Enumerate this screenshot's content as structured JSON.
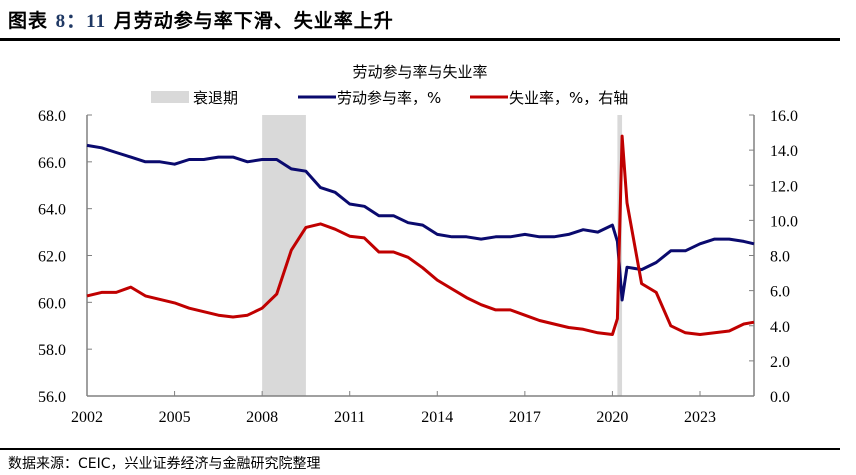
{
  "header": {
    "title_prefix": "图表",
    "title_num": "8：11",
    "title_text": "月劳动参与率下滑、失业率上升"
  },
  "footer": {
    "source": "数据来源：CEIC，兴业证券经济与金融研究院整理"
  },
  "colors": {
    "lfpr": "#0a0a6e",
    "unemployment": "#c00000",
    "recession": "#d9d9d9",
    "axis": "#808080"
  },
  "chart_data": {
    "type": "line",
    "title": "劳动参与率与失业率",
    "legend": [
      "衰退期",
      "劳动参与率，%",
      "失业率，%，右轴"
    ],
    "legend_position": "top",
    "xlabel": "",
    "ylabel": "",
    "x_ticks": [
      "2002",
      "2005",
      "2008",
      "2011",
      "2014",
      "2017",
      "2020",
      "2023"
    ],
    "y_left_ticks": [
      "56.0",
      "58.0",
      "60.0",
      "62.0",
      "64.0",
      "66.0",
      "68.0"
    ],
    "y_right_ticks": [
      "0.0",
      "2.0",
      "4.0",
      "6.0",
      "8.0",
      "10.0",
      "12.0",
      "14.0",
      "16.0"
    ],
    "ylim_left": [
      56,
      68
    ],
    "ylim_right": [
      0,
      16
    ],
    "xlim": [
      2002.0,
      2024.85
    ],
    "grid": false,
    "recessions": [
      [
        2008.0,
        2009.5
      ],
      [
        2020.17,
        2020.33
      ]
    ],
    "x": [
      2002.0,
      2002.5,
      2003.0,
      2003.5,
      2004.0,
      2004.5,
      2005.0,
      2005.5,
      2006.0,
      2006.5,
      2007.0,
      2007.5,
      2008.0,
      2008.5,
      2009.0,
      2009.5,
      2010.0,
      2010.5,
      2011.0,
      2011.5,
      2012.0,
      2012.5,
      2013.0,
      2013.5,
      2014.0,
      2014.5,
      2015.0,
      2015.5,
      2016.0,
      2016.5,
      2017.0,
      2017.5,
      2018.0,
      2018.5,
      2019.0,
      2019.5,
      2020.0,
      2020.17,
      2020.33,
      2020.5,
      2021.0,
      2021.5,
      2022.0,
      2022.5,
      2023.0,
      2023.5,
      2024.0,
      2024.5,
      2024.85
    ],
    "series": [
      {
        "name": "劳动参与率，%",
        "axis": "left",
        "values": [
          66.7,
          66.6,
          66.4,
          66.2,
          66.0,
          66.0,
          65.9,
          66.1,
          66.1,
          66.2,
          66.2,
          66.0,
          66.1,
          66.1,
          65.7,
          65.6,
          64.9,
          64.7,
          64.2,
          64.1,
          63.7,
          63.7,
          63.4,
          63.3,
          62.9,
          62.8,
          62.8,
          62.7,
          62.8,
          62.8,
          62.9,
          62.8,
          62.8,
          62.9,
          63.1,
          63.0,
          63.3,
          62.6,
          60.1,
          61.5,
          61.4,
          61.7,
          62.2,
          62.2,
          62.5,
          62.7,
          62.7,
          62.6,
          62.5
        ]
      },
      {
        "name": "失业率，%，右轴",
        "axis": "right",
        "values": [
          5.7,
          5.9,
          5.9,
          6.2,
          5.7,
          5.5,
          5.3,
          5.0,
          4.8,
          4.6,
          4.5,
          4.6,
          5.0,
          5.8,
          8.3,
          9.6,
          9.8,
          9.5,
          9.1,
          9.0,
          8.2,
          8.2,
          7.9,
          7.3,
          6.6,
          6.1,
          5.6,
          5.2,
          4.9,
          4.9,
          4.6,
          4.3,
          4.1,
          3.9,
          3.8,
          3.6,
          3.5,
          4.4,
          14.8,
          11.0,
          6.4,
          5.9,
          4.0,
          3.6,
          3.5,
          3.6,
          3.7,
          4.1,
          4.2
        ]
      }
    ]
  }
}
